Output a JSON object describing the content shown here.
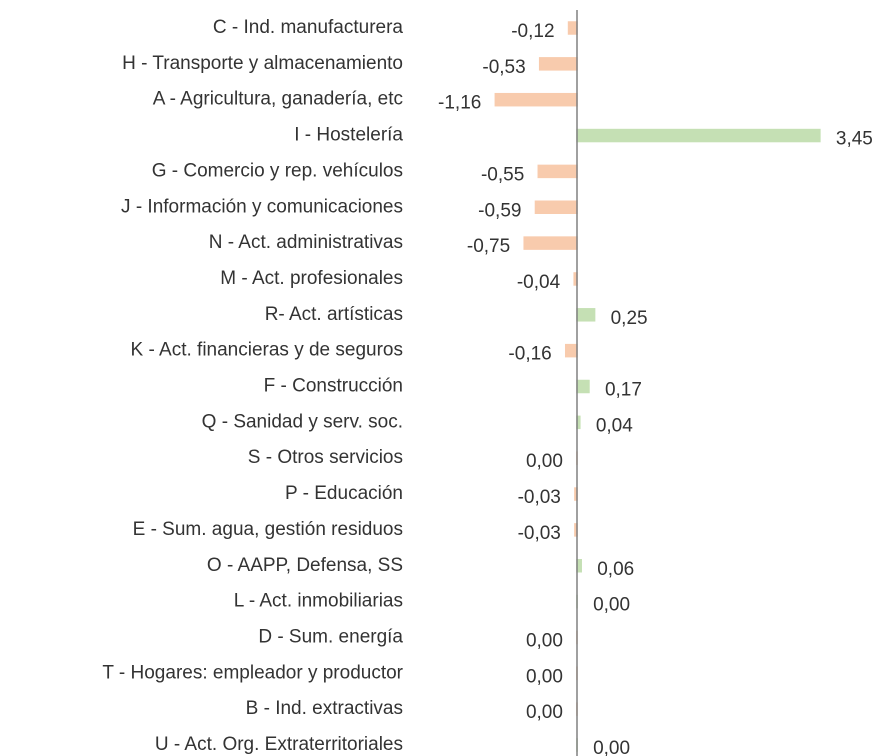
{
  "chart_data": {
    "type": "hbar",
    "categories": [
      "C - Ind. manufacturera",
      "H - Transporte y almacenamiento",
      "A - Agricultura, ganadería, etc",
      "I - Hostelería",
      "G - Comercio y rep. vehículos",
      "J - Información y comunicaciones",
      "N - Act. administrativas",
      "M - Act. profesionales",
      "R-  Act. artísticas",
      "K - Act. financieras y de seguros",
      "F - Construcción",
      "Q - Sanidad y serv. soc.",
      "S - Otros servicios",
      "P - Educación",
      "E - Sum. agua, gestión residuos",
      "O - AAPP, Defensa, SS",
      "L - Act. inmobiliarias",
      "D - Sum. energía ",
      "T - Hogares: empleador y productor",
      "B - Ind. extractivas",
      "U - Act. Org. Extraterritoriales"
    ],
    "values": [
      -0.12,
      -0.53,
      -1.16,
      3.45,
      -0.55,
      -0.59,
      -0.75,
      -0.04,
      0.25,
      -0.16,
      0.17,
      0.04,
      -0.001,
      -0.03,
      -0.03,
      0.06,
      0.001,
      -0.001,
      -0.001,
      -0.001,
      0.001
    ],
    "value_labels": [
      "-0,12",
      "-0,53",
      "-1,16",
      "3,45",
      "-0,55",
      "-0,59",
      "-0,75",
      "-0,04",
      "0,25",
      "-0,16",
      "0,17",
      "0,04",
      "0,00",
      "-0,03",
      "-0,03",
      "0,06",
      "0,00",
      "0,00",
      "0,00",
      "0,00",
      "0,00"
    ],
    "positive_color": "#c5e0b4",
    "negative_color": "#f8cbad",
    "xlim": [
      -1.5,
      3.5
    ]
  }
}
